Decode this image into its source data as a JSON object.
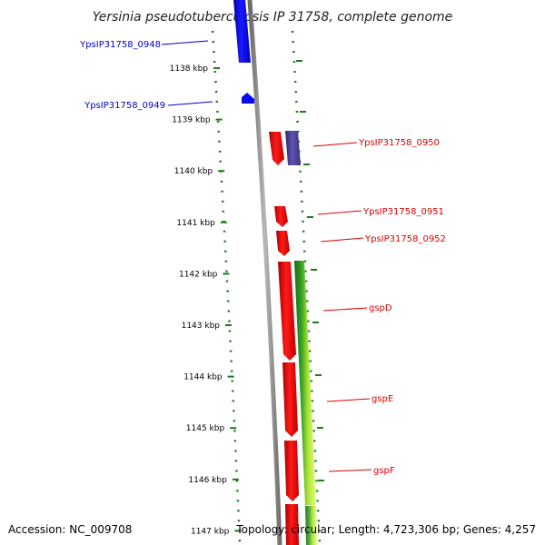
{
  "title": "Yersinia pseudotuberculosis IP 31758, complete genome",
  "footer": {
    "accession": "Accession: NC_009708",
    "stats": "Topology: circular; Length: 4,723,306 bp; Genes: 4,257"
  },
  "colors": {
    "forward_gene": "#0000cc",
    "reverse_gene": "#dd0000",
    "other_gene": "#4a3f8f",
    "gc_green": "#2e9e1e",
    "gc_lime": "#c8f040",
    "backbone": "#8a8a8a",
    "dots": "#1e7a1e"
  },
  "chart_data": {
    "type": "genome-map",
    "ticks": [
      {
        "kbp": 1138,
        "label": "1138 kbp"
      },
      {
        "kbp": 1139,
        "label": "1139 kbp"
      },
      {
        "kbp": 1140,
        "label": "1140 kbp"
      },
      {
        "kbp": 1141,
        "label": "1141 kbp"
      },
      {
        "kbp": 1142,
        "label": "1142 kbp"
      },
      {
        "kbp": 1143,
        "label": "1143 kbp"
      },
      {
        "kbp": 1144,
        "label": "1144 kbp"
      },
      {
        "kbp": 1145,
        "label": "1145 kbp"
      },
      {
        "kbp": 1146,
        "label": "1146 kbp"
      },
      {
        "kbp": 1147,
        "label": "1147 kbp"
      }
    ],
    "genes": [
      {
        "name": "YpsIP31758_0948",
        "strand": "left",
        "color": "blue",
        "start_kbp": 1136.9,
        "end_kbp": 1138.0
      },
      {
        "name": "YpsIP31758_0949",
        "strand": "left",
        "color": "blue",
        "start_kbp": 1138.5,
        "end_kbp": 1138.7
      },
      {
        "name": "YpsIP31758_0950",
        "strand": "right",
        "color": "red+purple",
        "start_kbp": 1139.25,
        "end_kbp": 1139.95
      },
      {
        "name": "YpsIP31758_0951",
        "strand": "right",
        "color": "red",
        "start_kbp": 1140.65,
        "end_kbp": 1141.1
      },
      {
        "name": "YpsIP31758_0952",
        "strand": "right",
        "color": "red",
        "start_kbp": 1141.15,
        "end_kbp": 1141.6
      },
      {
        "name": "gspD",
        "strand": "right",
        "color": "red",
        "start_kbp": 1141.75,
        "end_kbp": 1143.7
      },
      {
        "name": "gspE",
        "strand": "right",
        "color": "red",
        "start_kbp": 1143.75,
        "end_kbp": 1145.2
      },
      {
        "name": "gspF",
        "strand": "right",
        "color": "red",
        "start_kbp": 1145.25,
        "end_kbp": 1146.5
      }
    ]
  }
}
